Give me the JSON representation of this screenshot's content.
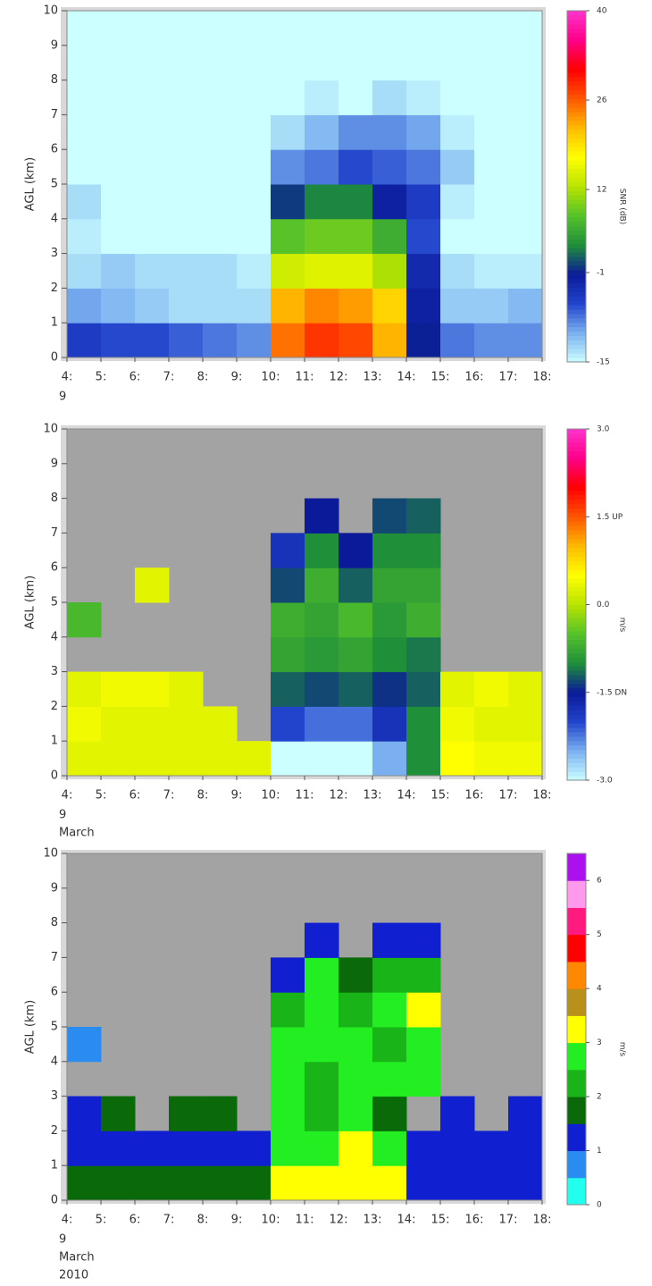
{
  "chart_data": [
    {
      "type": "heatmap",
      "ylabel": "AGL (km)",
      "colorbar_label": "SNR (dB)",
      "x_bins": [
        4,
        5,
        6,
        7,
        8,
        9,
        10,
        11,
        12,
        13,
        14,
        15,
        16,
        17,
        18
      ],
      "y_bins": [
        0,
        1,
        2,
        3,
        4,
        5,
        6,
        7,
        8,
        9,
        10
      ],
      "xlim": [
        4,
        18
      ],
      "ylim": [
        0,
        10
      ],
      "xticks": [
        {
          "value": 4,
          "label": "4:"
        },
        {
          "value": 5,
          "label": "5:"
        },
        {
          "value": 6,
          "label": "6:"
        },
        {
          "value": 7,
          "label": "7:"
        },
        {
          "value": 8,
          "label": "8:"
        },
        {
          "value": 9,
          "label": "9:"
        },
        {
          "value": 10,
          "label": "10:"
        },
        {
          "value": 11,
          "label": "11:"
        },
        {
          "value": 12,
          "label": "12:"
        },
        {
          "value": 13,
          "label": "13:"
        },
        {
          "value": 14,
          "label": "14:"
        },
        {
          "value": 15,
          "label": "15:"
        },
        {
          "value": 16,
          "label": "16:"
        },
        {
          "value": 17,
          "label": "17:"
        },
        {
          "value": 18,
          "label": "18:"
        }
      ],
      "yticks": [
        0,
        1,
        2,
        3,
        4,
        5,
        6,
        7,
        8,
        9,
        10
      ],
      "date_label": [
        "9"
      ],
      "zlim": [
        -15,
        40
      ],
      "colorbar_ticks": [
        -15,
        -1,
        12,
        26,
        40
      ],
      "discrete": false,
      "colors": [
        "#ccffff",
        "#7ab0f0",
        "#2244cc",
        "#0a1a99",
        "#1f8f3a",
        "#55c22a",
        "#b8e400",
        "#ffff00",
        "#ffbb00",
        "#ff5500",
        "#ff0000",
        "#ff0088",
        "#ff33cc"
      ],
      "z": [
        [
          -5,
          -6,
          -6,
          -7,
          -8,
          -9,
          25,
          28,
          27,
          22,
          -1,
          -8,
          -9,
          -9
        ],
        [
          -10,
          -11,
          -12,
          -13,
          -13,
          -13,
          22,
          24,
          23,
          20,
          -2,
          -12,
          -12,
          -11
        ],
        [
          -13,
          -12,
          -13,
          -13,
          -13,
          -14,
          14,
          15,
          15,
          12,
          -3,
          -13,
          -14,
          -14
        ],
        [
          -14,
          -15,
          -15,
          -15,
          -15,
          -15,
          8,
          9,
          9,
          6,
          -6,
          -15,
          -15,
          -15
        ],
        [
          -13,
          -15,
          -15,
          -15,
          -15,
          -15,
          0,
          3,
          3,
          -2,
          -5,
          -14,
          -15,
          -15
        ],
        [
          -15,
          -15,
          -15,
          -15,
          -15,
          -15,
          -9,
          -8,
          -6,
          -7,
          -8,
          -12,
          -15,
          -15
        ],
        [
          -15,
          -15,
          -15,
          -15,
          -15,
          -15,
          -13,
          -11,
          -9,
          -9,
          -10,
          -14,
          -15,
          -15
        ],
        [
          -15,
          -15,
          -15,
          -15,
          -15,
          -15,
          -15,
          -14,
          -15,
          -13,
          -14,
          -15,
          -15,
          -15
        ],
        [
          -15,
          -15,
          -15,
          -15,
          -15,
          -15,
          -15,
          -15,
          -15,
          -15,
          -15,
          -15,
          -15,
          -15
        ],
        [
          -15,
          -15,
          -15,
          -15,
          -15,
          -15,
          -15,
          -15,
          -15,
          -15,
          -15,
          -15,
          -15,
          -15
        ]
      ]
    },
    {
      "type": "heatmap",
      "ylabel": "AGL (km)",
      "colorbar_label": "m/s",
      "x_bins": [
        4,
        5,
        6,
        7,
        8,
        9,
        10,
        11,
        12,
        13,
        14,
        15,
        16,
        17,
        18
      ],
      "y_bins": [
        0,
        1,
        2,
        3,
        4,
        5,
        6,
        7,
        8,
        9,
        10
      ],
      "xlim": [
        4,
        18
      ],
      "ylim": [
        0,
        10
      ],
      "xticks": [
        {
          "value": 4,
          "label": "4:"
        },
        {
          "value": 5,
          "label": "5:"
        },
        {
          "value": 6,
          "label": "6:"
        },
        {
          "value": 7,
          "label": "7:"
        },
        {
          "value": 8,
          "label": "8:"
        },
        {
          "value": 9,
          "label": "9:"
        },
        {
          "value": 10,
          "label": "10:"
        },
        {
          "value": 11,
          "label": "11:"
        },
        {
          "value": 12,
          "label": "12:"
        },
        {
          "value": 13,
          "label": "13:"
        },
        {
          "value": 14,
          "label": "14:"
        },
        {
          "value": 15,
          "label": "15:"
        },
        {
          "value": 16,
          "label": "16:"
        },
        {
          "value": 17,
          "label": "17:"
        },
        {
          "value": 18,
          "label": "18:"
        }
      ],
      "yticks": [
        0,
        1,
        2,
        3,
        4,
        5,
        6,
        7,
        8,
        9,
        10
      ],
      "date_label": [
        "9",
        "March"
      ],
      "zlim": [
        -3,
        3
      ],
      "colorbar_ticks": [
        {
          "value": -3,
          "label": "-3.0"
        },
        {
          "value": -1.5,
          "label": "-1.5 DN"
        },
        {
          "value": 0,
          "label": "0.0"
        },
        {
          "value": 1.5,
          "label": "1.5 UP"
        },
        {
          "value": 3,
          "label": "3.0"
        }
      ],
      "discrete": false,
      "missing_color": "#a3a3a3",
      "colors": [
        "#ccffff",
        "#7ab0f0",
        "#2244cc",
        "#0a1a99",
        "#1f8f3a",
        "#55c22a",
        "#b8e400",
        "#ffff00",
        "#ffbb00",
        "#ff5500",
        "#ff0000",
        "#ff0088",
        "#ff33cc"
      ],
      "z": [
        [
          0.3,
          0.3,
          0.3,
          0.3,
          0.3,
          0.3,
          -3,
          -3,
          -3,
          -2.5,
          -1,
          0.5,
          0.4,
          0.4
        ],
        [
          0.4,
          0.3,
          0.3,
          0.3,
          0.3,
          null,
          -2,
          -2.2,
          -2.2,
          -1.8,
          -1,
          0.4,
          0.3,
          0.3
        ],
        [
          0.3,
          0.4,
          0.4,
          0.3,
          null,
          null,
          -1.2,
          -1.3,
          -1.2,
          -1.4,
          -1.2,
          0.3,
          0.4,
          0.3
        ],
        [
          null,
          null,
          null,
          null,
          null,
          null,
          -0.8,
          -0.9,
          -0.8,
          -1,
          -1.1,
          null,
          null,
          null
        ],
        [
          -0.6,
          null,
          null,
          null,
          null,
          null,
          -0.7,
          -0.8,
          -0.6,
          -0.9,
          -0.7,
          null,
          null,
          null
        ],
        [
          null,
          null,
          0.3,
          null,
          null,
          null,
          -1.3,
          -0.7,
          -1.2,
          -0.8,
          -0.8,
          null,
          null,
          null
        ],
        [
          null,
          null,
          null,
          null,
          null,
          null,
          -1.8,
          -1,
          -1.5,
          -1,
          -1,
          null,
          null,
          null
        ],
        [
          null,
          null,
          null,
          null,
          null,
          null,
          null,
          -1.5,
          null,
          -1.3,
          -1.2,
          null,
          null,
          null
        ],
        [
          null,
          null,
          null,
          null,
          null,
          null,
          null,
          null,
          null,
          null,
          null,
          null,
          null,
          null
        ],
        [
          null,
          null,
          null,
          null,
          null,
          null,
          null,
          null,
          null,
          null,
          null,
          null,
          null,
          null
        ]
      ]
    },
    {
      "type": "heatmap",
      "ylabel": "AGL (km)",
      "colorbar_label": "m/s",
      "x_bins": [
        4,
        5,
        6,
        7,
        8,
        9,
        10,
        11,
        12,
        13,
        14,
        15,
        16,
        17,
        18
      ],
      "y_bins": [
        0,
        1,
        2,
        3,
        4,
        5,
        6,
        7,
        8,
        9,
        10
      ],
      "xlim": [
        4,
        18
      ],
      "ylim": [
        0,
        10
      ],
      "xticks": [
        {
          "value": 4,
          "label": "4:"
        },
        {
          "value": 5,
          "label": "5:"
        },
        {
          "value": 6,
          "label": "6:"
        },
        {
          "value": 7,
          "label": "7:"
        },
        {
          "value": 8,
          "label": "8:"
        },
        {
          "value": 9,
          "label": "9:"
        },
        {
          "value": 10,
          "label": "10:"
        },
        {
          "value": 11,
          "label": "11:"
        },
        {
          "value": 12,
          "label": "12:"
        },
        {
          "value": 13,
          "label": "13:"
        },
        {
          "value": 14,
          "label": "14:"
        },
        {
          "value": 15,
          "label": "15:"
        },
        {
          "value": 16,
          "label": "16:"
        },
        {
          "value": 17,
          "label": "17:"
        },
        {
          "value": 18,
          "label": "18:"
        }
      ],
      "yticks": [
        0,
        1,
        2,
        3,
        4,
        5,
        6,
        7,
        8,
        9,
        10
      ],
      "date_label": [
        "9",
        "March",
        "2010"
      ],
      "zlim": [
        0,
        6.5
      ],
      "colorbar_ticks": [
        0,
        1,
        2,
        3,
        4,
        5,
        6
      ],
      "discrete": true,
      "missing_color": "#a3a3a3",
      "colors": [
        "#22ffee",
        "#2a8cf0",
        "#1020d0",
        "#0a6a0a",
        "#18b418",
        "#22ee22",
        "#ffff00",
        "#b8901a",
        "#ff8800",
        "#ff0000",
        "#ff1a80",
        "#ff99ee",
        "#aa11ee"
      ],
      "z": [
        [
          1.8,
          1.8,
          1.8,
          1.8,
          1.8,
          1.8,
          3.2,
          3.2,
          3.2,
          3,
          1.2,
          1.1,
          1.1,
          1
        ],
        [
          1.1,
          1.2,
          1,
          1,
          1.1,
          1.1,
          2.8,
          2.9,
          3,
          2.7,
          1.2,
          1.2,
          1.1,
          1.1
        ],
        [
          1.2,
          1.8,
          null,
          1.7,
          1.8,
          null,
          2.7,
          2.3,
          2.6,
          1.6,
          null,
          1.3,
          null,
          1.2
        ],
        [
          null,
          null,
          null,
          null,
          null,
          null,
          2.8,
          2.2,
          2.7,
          2.5,
          2.6,
          null,
          null,
          null
        ],
        [
          0.8,
          null,
          null,
          null,
          null,
          null,
          2.6,
          2.7,
          2.5,
          2.2,
          2.7,
          null,
          null,
          null
        ],
        [
          null,
          null,
          null,
          null,
          null,
          null,
          2.2,
          2.7,
          2.4,
          2.6,
          3,
          null,
          null,
          null
        ],
        [
          null,
          null,
          null,
          null,
          null,
          null,
          1.3,
          2.5,
          1.5,
          2.4,
          2.2,
          null,
          null,
          null
        ],
        [
          null,
          null,
          null,
          null,
          null,
          null,
          null,
          1.2,
          null,
          1.3,
          1.2,
          null,
          null,
          null
        ],
        [
          null,
          null,
          null,
          null,
          null,
          null,
          null,
          null,
          null,
          null,
          null,
          null,
          null,
          null
        ],
        [
          null,
          null,
          null,
          null,
          null,
          null,
          null,
          null,
          null,
          null,
          null,
          null,
          null,
          null
        ]
      ]
    }
  ]
}
